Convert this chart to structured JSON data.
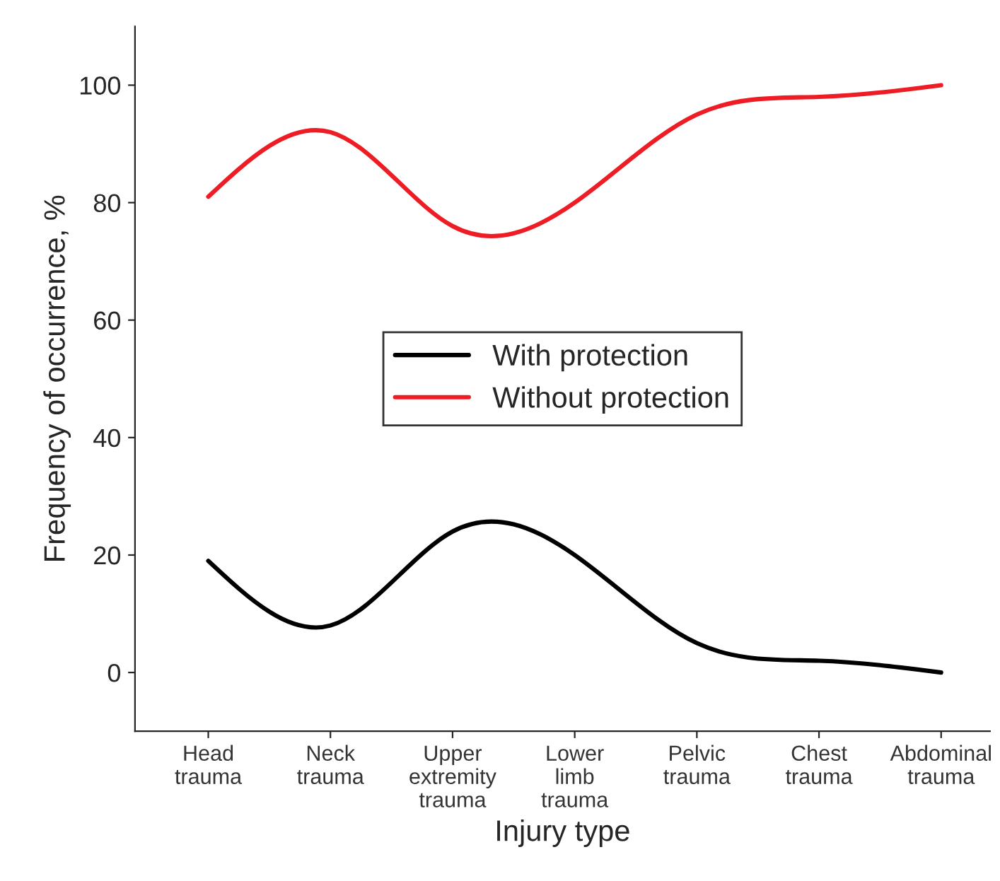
{
  "chart_data": {
    "type": "line",
    "xlabel": "Injury type",
    "ylabel": "Frequency of occurrence, %",
    "categories": [
      "Head trauma",
      "Neck trauma",
      "Upper extremity trauma",
      "Lower limb trauma",
      "Pelvic trauma",
      "Chest trauma",
      "Abdominal trauma"
    ],
    "series": [
      {
        "name": "With protection",
        "color": "#000000",
        "values": [
          19,
          8,
          24,
          20,
          5,
          2,
          0
        ]
      },
      {
        "name": "Without protection",
        "color": "#ee1c24",
        "values": [
          81,
          92,
          76,
          80,
          95,
          98,
          100
        ]
      }
    ],
    "ylim": [
      -10,
      110
    ],
    "yticks": [
      0,
      20,
      40,
      60,
      80,
      100
    ],
    "grid": false,
    "legend": "center",
    "marker": "none",
    "line_style": "solid"
  }
}
